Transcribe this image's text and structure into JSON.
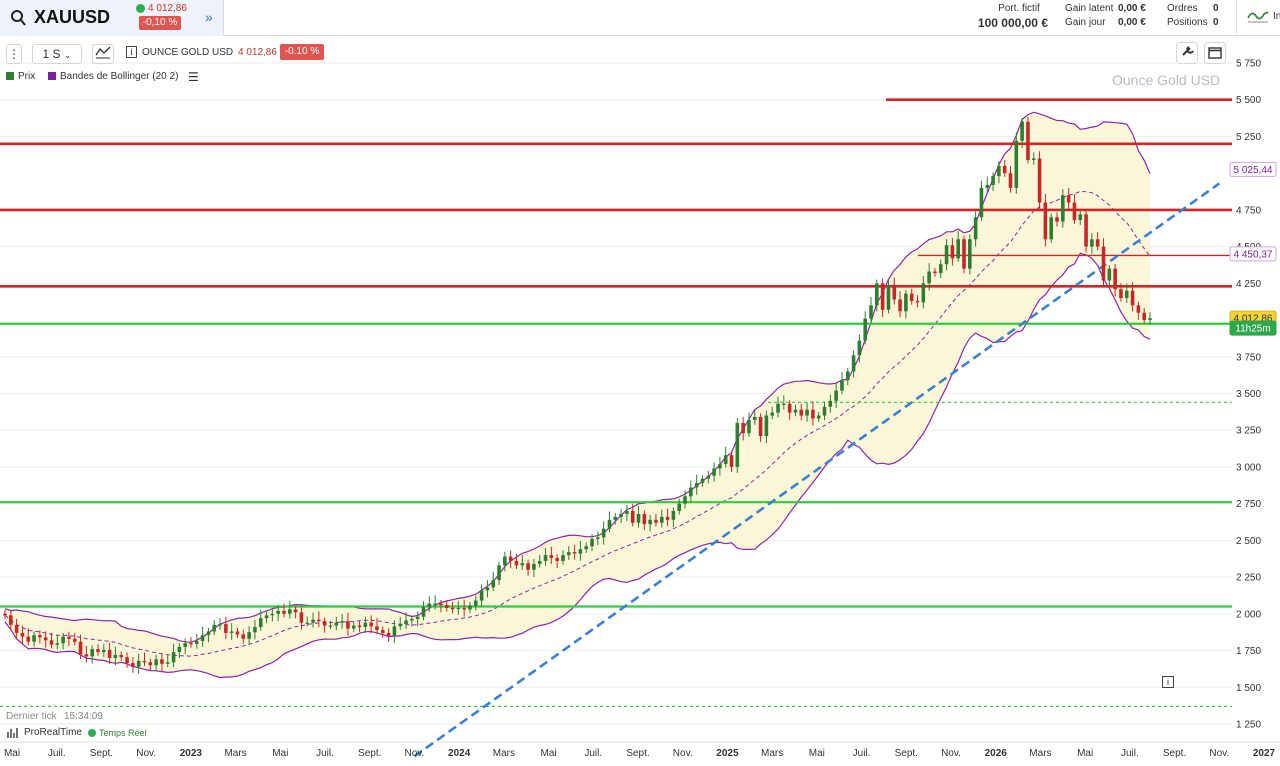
{
  "header": {
    "symbol": "XAUUSD",
    "price": "4 012,86",
    "change": "-0,10 %",
    "expand_icon": "double-chevron-right-icon",
    "portfolio_label": "Port. fictif",
    "portfolio_value": "100 000,00 €",
    "gain_latent_label": "Gain latent",
    "gain_latent_value": "0,00 €",
    "gain_jour_label": "Gain jour",
    "gain_jour_value": "0,00 €",
    "orders_label": "Ordres",
    "orders_value": "0",
    "positions_label": "Positions",
    "positions_value": "0",
    "right_label": "In"
  },
  "toolbar": {
    "timeframe": "1 S",
    "instrument_title": "OUNCE GOLD USD",
    "instrument_price": "4 012,86",
    "instrument_change": "-0.10 %"
  },
  "legend": {
    "price_label": "Prix",
    "bollinger_label": "Bandes de Bollinger (20 2)",
    "price_color": "#2e7d32",
    "bollinger_color": "#7b1fa2"
  },
  "watermark": "Ounce Gold USD",
  "footer": {
    "last_tick_label": "Dernier tick",
    "last_tick_time": "15:34:09",
    "platform": "ProRealTime",
    "realtime": "Temps Réel"
  },
  "colors": {
    "up": "#2e7d32",
    "down": "#c62828",
    "resistance": "#d42424",
    "support": "#2ecc40",
    "trend": "#3f7fcf",
    "bollinger": "#8e24aa",
    "band_fill": "#faf7d8"
  },
  "chart_data": {
    "type": "candlestick",
    "title": "Ounce Gold USD",
    "y_ticks": [
      1250,
      1500,
      1750,
      2000,
      2250,
      2500,
      2750,
      3000,
      3250,
      3500,
      3750,
      4250,
      4500,
      4750,
      5250,
      5500,
      5750
    ],
    "y_tick_labels": [
      "1 250",
      "1 500",
      "1 750",
      "2 000",
      "2 250",
      "2 500",
      "2 750",
      "3 000",
      "3 250",
      "3 500",
      "3 750",
      "4 250",
      "4 500",
      "4 750",
      "5 250",
      "5 500",
      "5 750"
    ],
    "x_tick_labels": [
      "Mai",
      "Juil.",
      "Sept.",
      "Nov.",
      "2023",
      "Mars",
      "Mai",
      "Juil.",
      "Sept.",
      "Nov.",
      "2024",
      "Mars",
      "Mai",
      "Juil.",
      "Sept.",
      "Nov.",
      "2025",
      "Mars",
      "Mai",
      "Juil.",
      "Sept.",
      "Nov.",
      "2026",
      "Mars",
      "Mai",
      "Juil.",
      "Sept.",
      "Nov.",
      "2027"
    ],
    "ylim": [
      1080,
      5900
    ],
    "price_labels": [
      {
        "value": 5025.44,
        "text": "5 025,44",
        "kind": "bollinger-upper"
      },
      {
        "value": 4450.37,
        "text": "4 450,37",
        "kind": "bollinger-mid"
      },
      {
        "value": 4012.86,
        "text": "4 012,86",
        "kind": "last"
      },
      {
        "value": 3945,
        "text": "11h25m",
        "kind": "countdown"
      }
    ],
    "horizontal_levels": [
      {
        "value": 5500,
        "kind": "resistance"
      },
      {
        "value": 5200,
        "kind": "resistance"
      },
      {
        "value": 4750,
        "kind": "resistance"
      },
      {
        "value": 4440,
        "kind": "resistance-thin"
      },
      {
        "value": 4230,
        "kind": "resistance"
      },
      {
        "value": 3975,
        "kind": "support"
      },
      {
        "value": 3440,
        "kind": "support-dashed"
      },
      {
        "value": 2760,
        "kind": "support"
      },
      {
        "value": 2050,
        "kind": "support"
      },
      {
        "value": 1370,
        "kind": "support-dashed"
      }
    ],
    "trendline": [
      {
        "date": "2023-11",
        "value": 1030
      },
      {
        "date": "2026-11",
        "value": 4930
      }
    ],
    "closes": [
      1990,
      1925,
      1870,
      1845,
      1810,
      1855,
      1840,
      1820,
      1790,
      1800,
      1845,
      1830,
      1810,
      1725,
      1710,
      1760,
      1740,
      1755,
      1700,
      1720,
      1705,
      1665,
      1640,
      1680,
      1670,
      1650,
      1690,
      1660,
      1670,
      1740,
      1775,
      1800,
      1795,
      1815,
      1855,
      1880,
      1925,
      1930,
      1870,
      1880,
      1860,
      1830,
      1875,
      1910,
      1970,
      1990,
      2000,
      2020,
      2000,
      2030,
      2010,
      1940,
      1940,
      1960,
      1950,
      1920,
      1920,
      1940,
      1950,
      1900,
      1920,
      1910,
      1940,
      1915,
      1890,
      1870,
      1850,
      1915,
      1930,
      1955,
      1965,
      1980,
      2045,
      2070,
      2070,
      2060,
      2040,
      2035,
      2040,
      2030,
      2055,
      2090,
      2160,
      2180,
      2230,
      2330,
      2390,
      2360,
      2330,
      2345,
      2300,
      2340,
      2360,
      2400,
      2380,
      2360,
      2400,
      2420,
      2410,
      2440,
      2460,
      2510,
      2520,
      2580,
      2640,
      2660,
      2680,
      2700,
      2620,
      2680,
      2610,
      2640,
      2620,
      2660,
      2640,
      2700,
      2750,
      2800,
      2860,
      2890,
      2920,
      2940,
      2990,
      3020,
      3080,
      3000,
      3300,
      3230,
      3320,
      3340,
      3210,
      3350,
      3370,
      3430,
      3430,
      3370,
      3390,
      3350,
      3390,
      3330,
      3350,
      3410,
      3450,
      3520,
      3590,
      3650,
      3760,
      3860,
      4010,
      4100,
      4250,
      4070,
      4240,
      4140,
      4060,
      4180,
      4130,
      4120,
      4250,
      4330,
      4320,
      4380,
      4510,
      4420,
      4550,
      4350,
      4550,
      4700,
      4900,
      4920,
      4980,
      5050,
      5000,
      4900,
      5220,
      5350,
      5090,
      5100,
      4800,
      4550,
      4700,
      4670,
      4850,
      4800,
      4680,
      4720,
      4500,
      4550,
      4500,
      4270,
      4350,
      4210,
      4150,
      4200,
      4100,
      4050,
      4000,
      4012
    ],
    "ohlc_first_close": 1990
  }
}
